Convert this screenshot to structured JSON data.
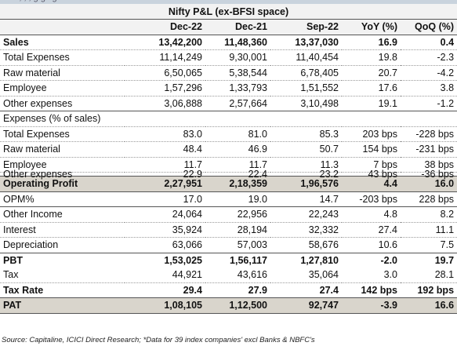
{
  "table": {
    "title": "Nifty P&L (ex-BFSI space)",
    "headers": [
      "",
      "Dec-22",
      "Dec-21",
      "Sep-22",
      "YoY (%)",
      "QoQ (%)"
    ],
    "rows": [
      {
        "label": "Sales",
        "values": [
          "13,42,200",
          "11,48,360",
          "13,37,030",
          "16.9",
          "0.4"
        ]
      },
      {
        "label": "Total Expenses",
        "values": [
          "11,14,249",
          "9,30,001",
          "11,40,454",
          "19.8",
          "-2.3"
        ]
      },
      {
        "label": "Raw material",
        "values": [
          "6,50,065",
          "5,38,544",
          "6,78,405",
          "20.7",
          "-4.2"
        ]
      },
      {
        "label": "Employee",
        "values": [
          "1,57,296",
          "1,33,793",
          "1,51,552",
          "17.6",
          "3.8"
        ]
      },
      {
        "label": "Other expenses",
        "values": [
          "3,06,888",
          "2,57,664",
          "3,10,498",
          "19.1",
          "-1.2"
        ]
      },
      {
        "label": "Expenses (% of sales)",
        "values": [
          "",
          "",
          "",
          "",
          ""
        ]
      },
      {
        "label": "Total Expenses",
        "values": [
          "83.0",
          "81.0",
          "85.3",
          "203 bps",
          "-228 bps"
        ]
      },
      {
        "label": "Raw material",
        "values": [
          "48.4",
          "46.9",
          "50.7",
          "154 bps",
          "-231 bps"
        ]
      },
      {
        "label": "Employee",
        "values": [
          "11.7",
          "11.7",
          "11.3",
          "7 bps",
          "38 bps"
        ]
      },
      {
        "label": "Other expenses",
        "values": [
          "22.9",
          "22.4",
          "23.2",
          "43 bps",
          "-36 bps"
        ]
      },
      {
        "label": "Operating Profit",
        "values": [
          "2,27,951",
          "2,18,359",
          "1,96,576",
          "4.4",
          "16.0"
        ]
      },
      {
        "label": "OPM%",
        "values": [
          "17.0",
          "19.0",
          "14.7",
          "-203 bps",
          "228 bps"
        ]
      },
      {
        "label": "Other Income",
        "values": [
          "24,064",
          "22,956",
          "22,243",
          "4.8",
          "8.2"
        ]
      },
      {
        "label": "Interest",
        "values": [
          "35,924",
          "28,194",
          "32,332",
          "27.4",
          "11.1"
        ]
      },
      {
        "label": "Depreciation",
        "values": [
          "63,066",
          "57,003",
          "58,676",
          "10.6",
          "7.5"
        ]
      },
      {
        "label": "PBT",
        "values": [
          "1,53,025",
          "1,56,117",
          "1,27,810",
          "-2.0",
          "19.7"
        ]
      },
      {
        "label": "Tax",
        "values": [
          "44,921",
          "43,616",
          "35,064",
          "3.0",
          "28.1"
        ]
      },
      {
        "label": "Tax Rate",
        "values": [
          "29.4",
          "27.9",
          "27.4",
          "142 bps",
          "192 bps"
        ]
      },
      {
        "label": "PAT",
        "values": [
          "1,08,105",
          "1,12,500",
          "92,747",
          "-3.9",
          "16.6"
        ]
      }
    ]
  },
  "source_note": "Source: Capitaline, ICICI Direct Research; *Data for 39 index companies' excl Banks & NBFC's"
}
